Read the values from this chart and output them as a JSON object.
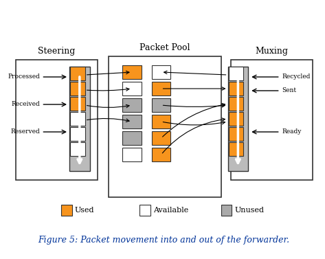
{
  "title": "Packet Pool",
  "steering_label": "Steering",
  "muxing_label": "Muxing",
  "steering_arrows": [
    "Processed",
    "Received",
    "Reserved"
  ],
  "muxing_arrows": [
    "Recycled",
    "Sent",
    "Ready"
  ],
  "legend_items": [
    {
      "label": "Used",
      "color": "#F7941D"
    },
    {
      "label": "Available",
      "color": "#FFFFFF"
    },
    {
      "label": "Unused",
      "color": "#AAAAAA"
    }
  ],
  "caption": "Figure 5: Packet movement into and out of the forwarder.",
  "orange": "#F7941D",
  "white": "#FFFFFF",
  "gray": "#AAAAAA",
  "dark_gray": "#666666",
  "border_color": "#333333",
  "caption_color": "#003399"
}
